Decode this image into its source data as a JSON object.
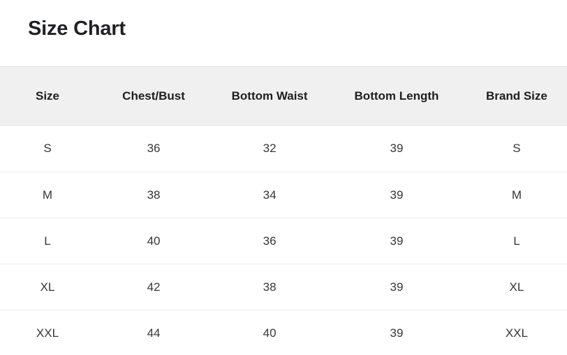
{
  "page": {
    "title": "Size Chart"
  },
  "table": {
    "columns": [
      "Size",
      "Chest/Bust",
      "Bottom Waist",
      "Bottom Length",
      "Brand Size"
    ],
    "rows": [
      [
        "S",
        "36",
        "32",
        "39",
        "S"
      ],
      [
        "M",
        "38",
        "34",
        "39",
        "M"
      ],
      [
        "L",
        "40",
        "36",
        "39",
        "L"
      ],
      [
        "XL",
        "42",
        "38",
        "39",
        "XL"
      ],
      [
        "XXL",
        "44",
        "40",
        "39",
        "XXL"
      ]
    ]
  },
  "colors": {
    "header_background": "#f0f0f0",
    "row_divider": "#ededed",
    "text": "#333538",
    "heading_text": "#1f2124"
  }
}
